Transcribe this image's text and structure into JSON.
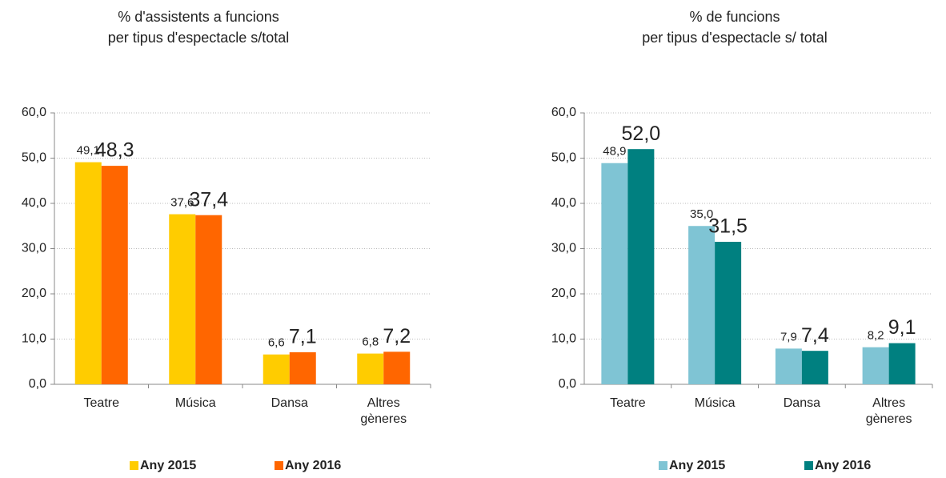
{
  "chart_data": [
    {
      "type": "bar",
      "title": [
        "% d'assistents a funcions",
        "per tipus d'espectacle s/total"
      ],
      "categories": [
        "Teatre",
        "Música",
        "Dansa",
        "Altres gèneres"
      ],
      "series": [
        {
          "name": "Any 2015",
          "color": "#ffcc00",
          "values": [
            49.1,
            37.6,
            6.6,
            6.8
          ],
          "value_labels": [
            "49,1",
            "37,6",
            "6,6",
            "6,8"
          ]
        },
        {
          "name": "Any 2016",
          "color": "#ff6600",
          "values": [
            48.3,
            37.4,
            7.1,
            7.2
          ],
          "value_labels": [
            "48,3",
            "37,4",
            "7,1",
            "7,2"
          ]
        }
      ],
      "ylim": [
        0,
        60
      ],
      "yticks": [
        {
          "value": 0,
          "label": "0,0"
        },
        {
          "value": 10,
          "label": "10,0"
        },
        {
          "value": 20,
          "label": "20,0"
        },
        {
          "value": 30,
          "label": "30,0"
        },
        {
          "value": 40,
          "label": "40,0"
        },
        {
          "value": 50,
          "label": "50,0"
        },
        {
          "value": 60,
          "label": "60,0"
        }
      ],
      "grid": true,
      "legend": "bottom"
    },
    {
      "type": "bar",
      "title": [
        "% de funcions",
        "per tipus d'espectacle s/ total"
      ],
      "categories": [
        "Teatre",
        "Música",
        "Dansa",
        "Altres gèneres"
      ],
      "series": [
        {
          "name": "Any 2015",
          "color": "#7fc4d4",
          "values": [
            48.9,
            35.0,
            7.9,
            8.2
          ],
          "value_labels": [
            "48,9",
            "35,0",
            "7,9",
            "8,2"
          ]
        },
        {
          "name": "Any 2016",
          "color": "#008080",
          "values": [
            52.0,
            31.5,
            7.4,
            9.1
          ],
          "value_labels": [
            "52,0",
            "31,5",
            "7,4",
            "9,1"
          ]
        }
      ],
      "ylim": [
        0,
        60
      ],
      "yticks": [
        {
          "value": 0,
          "label": "0,0"
        },
        {
          "value": 10,
          "label": "10,0"
        },
        {
          "value": 20,
          "label": "20,0"
        },
        {
          "value": 30,
          "label": "30,0"
        },
        {
          "value": 40,
          "label": "40,0"
        },
        {
          "value": 50,
          "label": "50,0"
        },
        {
          "value": 60,
          "label": "60,0"
        }
      ],
      "grid": true,
      "legend": "bottom"
    }
  ]
}
